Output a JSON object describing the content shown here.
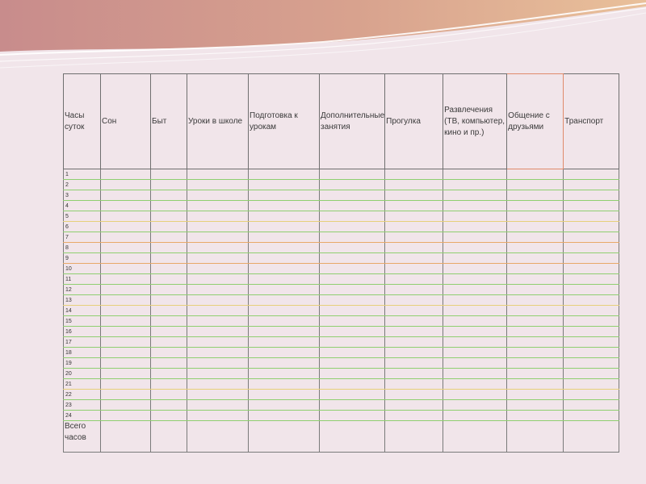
{
  "table": {
    "headers": [
      "Часы суток",
      "Сон",
      "Быт",
      "Уроки в школе",
      "Подготовка к урокам",
      "Дополнительные занятия",
      "Прогулка",
      "Развлечения (ТВ, компьютер, кино и пр.)",
      "Общение с друзьями",
      "Транспорт"
    ],
    "hours": [
      "1",
      "2",
      "3",
      "4",
      "5",
      "6",
      "7",
      "8",
      "9",
      "10",
      "11",
      "12",
      "13",
      "14",
      "15",
      "16",
      "17",
      "18",
      "19",
      "20",
      "21",
      "22",
      "23",
      "24"
    ],
    "total_label": "Всего часов"
  }
}
